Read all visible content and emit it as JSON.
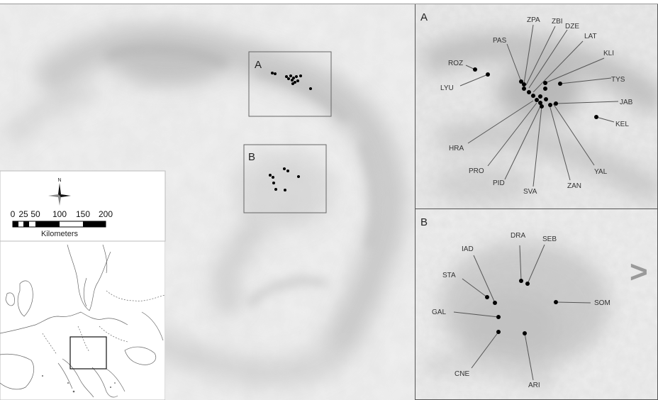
{
  "main_map": {
    "inset_labels": [
      "A",
      "B"
    ]
  },
  "panel_a": {
    "letter": "A",
    "sites": [
      "ROZ",
      "LYU",
      "PAS",
      "ZPA",
      "ZBI",
      "DZE",
      "LAT",
      "KLI",
      "TYS",
      "JAB",
      "KEL",
      "HRA",
      "PRO",
      "PID",
      "SVA",
      "ZAN",
      "YAL"
    ]
  },
  "panel_b": {
    "letter": "B",
    "sites": [
      "IAD",
      "DRA",
      "SEB",
      "STA",
      "GAL",
      "SOM",
      "CNE",
      "ARI"
    ]
  },
  "legend": {
    "north_label": "N",
    "scale_ticks": [
      "0",
      "25",
      "50",
      "100",
      "150",
      "200"
    ],
    "scale_unit": "Kilometers"
  },
  "nav": {
    "next_symbol": ">"
  },
  "colors": {
    "terrain_light": "#e6e6e6",
    "terrain_mid": "#c9c9c9",
    "terrain_dark": "#a8a8a8",
    "lowland": "#f2f2f2",
    "dots": "#000000"
  }
}
